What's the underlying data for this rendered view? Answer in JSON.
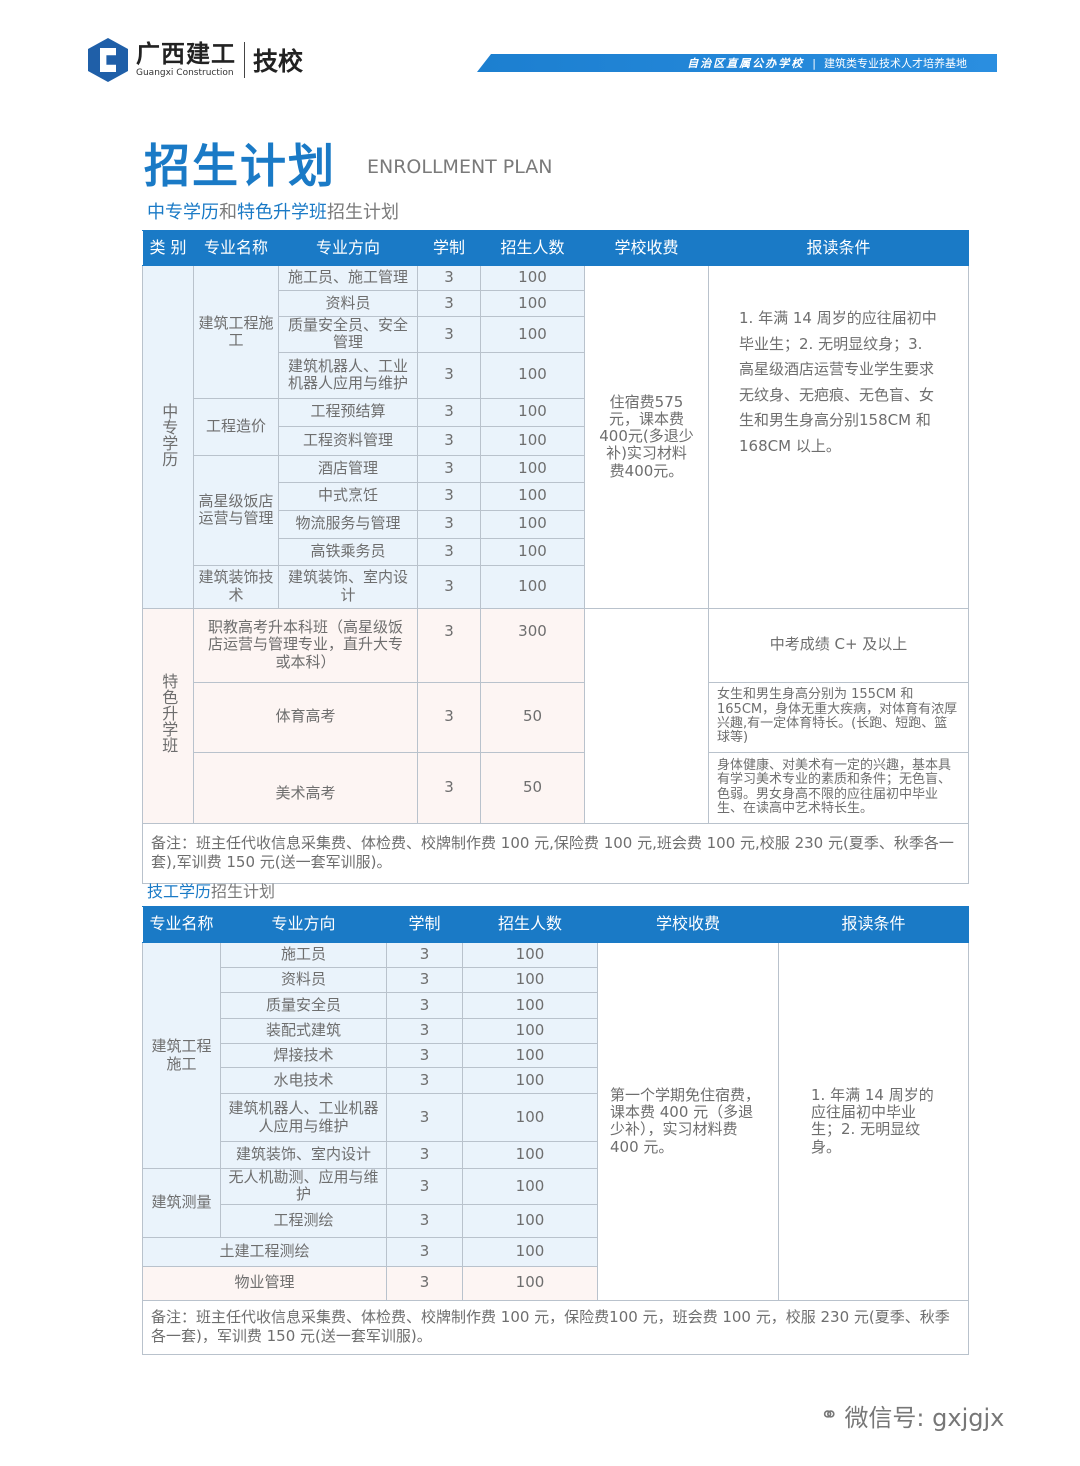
{
  "header": {
    "logo_cn": "广西建工",
    "logo_en": "Guangxi Construction",
    "logo_school": "技校",
    "banner_left": "自治区直属公办学校",
    "banner_sep": "|",
    "banner_right": "建筑类专业技术人才培养基地"
  },
  "title": {
    "cn": "招生计划",
    "en": "ENROLLMENT PLAN"
  },
  "section1": {
    "title_parts": [
      "中专学历",
      "和",
      "特色升学班",
      "招生计划"
    ]
  },
  "t1": {
    "headers": [
      "类 别",
      "专业名称",
      "专业方向",
      "学制",
      "招生人数",
      "学校收费",
      "报读条件"
    ],
    "cat1": "中专学历",
    "cat2": "特色升学班",
    "majors": [
      "建筑工程施工",
      "工程造价",
      "高星级饭店运营与管理",
      "建筑装饰技术"
    ],
    "rows": [
      {
        "dir": "施工员、施工管理",
        "years": "3",
        "count": "100"
      },
      {
        "dir": "资料员",
        "years": "3",
        "count": "100"
      },
      {
        "dir": "质量安全员、安全管理",
        "years": "3",
        "count": "100"
      },
      {
        "dir": "建筑机器人、工业机器人应用与维护",
        "years": "3",
        "count": "100"
      },
      {
        "dir": "工程预结算",
        "years": "3",
        "count": "100"
      },
      {
        "dir": "工程资料管理",
        "years": "3",
        "count": "100"
      },
      {
        "dir": "酒店管理",
        "years": "3",
        "count": "100"
      },
      {
        "dir": "中式烹饪",
        "years": "3",
        "count": "100"
      },
      {
        "dir": "物流服务与管理",
        "years": "3",
        "count": "100"
      },
      {
        "dir": "高铁乘务员",
        "years": "3",
        "count": "100"
      },
      {
        "dir": "建筑装饰、室内设计",
        "years": "3",
        "count": "100"
      },
      {
        "dir": "职教高考升本科班（高星级饭店运营与管理专业，直升大专或本科）",
        "years": "3",
        "count": "300",
        "cond": "中考成绩 C+ 及以上"
      },
      {
        "dir": "体育高考",
        "years": "3",
        "count": "50",
        "cond": "女生和男生身高分别为 155CM 和 165CM，身体无重大疾病，对体育有浓厚兴趣,有一定体育特长。(长跑、短跑、篮球等)"
      },
      {
        "dir": "美术高考",
        "years": "3",
        "count": "50",
        "cond": "身体健康、对美术有一定的兴趣，基本具有学习美术专业的素质和条件；无色盲、色弱。男女身高不限的应往届初中毕业生、在读高中艺术特长生。"
      }
    ],
    "fee": "住宿费575元，课本费400元(多退少补)实习材料费400元。",
    "cond_main": "1. 年满 14 周岁的应往届初中毕业生；2. 无明显纹身；3. 高星级酒店运营专业学生要求无纹身、无疤痕、无色盲、女生和男生身高分别158CM 和 168CM 以上。",
    "remark": "备注：班主任代收信息采集费、体检费、校牌制作费 100 元,保险费 100 元,班会费 100 元,校服 230 元(夏季、秋季各一套),军训费 150 元(送一套军训服)。"
  },
  "section2": {
    "title_parts": [
      "技工学历",
      "招生计划"
    ]
  },
  "t2": {
    "headers": [
      "专业名称",
      "专业方向",
      "学制",
      "招生人数",
      "学校收费",
      "报读条件"
    ],
    "majors": [
      "建筑工程施工",
      "建筑测量",
      "土建工程测绘",
      "物业管理"
    ],
    "rows": [
      {
        "dir": "施工员",
        "years": "3",
        "count": "100"
      },
      {
        "dir": "资料员",
        "years": "3",
        "count": "100"
      },
      {
        "dir": "质量安全员",
        "years": "3",
        "count": "100"
      },
      {
        "dir": "装配式建筑",
        "years": "3",
        "count": "100"
      },
      {
        "dir": "焊接技术",
        "years": "3",
        "count": "100"
      },
      {
        "dir": "水电技术",
        "years": "3",
        "count": "100"
      },
      {
        "dir": "建筑机器人、工业机器人应用与维护",
        "years": "3",
        "count": "100"
      },
      {
        "dir": "建筑装饰、室内设计",
        "years": "3",
        "count": "100"
      },
      {
        "dir": "无人机勘测、应用与维护",
        "years": "3",
        "count": "100"
      },
      {
        "dir": "工程测绘",
        "years": "3",
        "count": "100"
      },
      {
        "years": "3",
        "count": "100"
      },
      {
        "years": "3",
        "count": "100"
      }
    ],
    "fee": "第一个学期免住宿费，课本费 400 元（多退少补），实习材料费 400 元。",
    "cond": "1. 年满 14 周岁的应往届初中毕业生；2. 无明显纹身。",
    "remark": "备注：班主任代收信息采集费、体检费、校牌制作费 100 元，保险费100 元，班会费 100 元，校服 230 元(夏季、秋季各一套)，军训费 150 元(送一套军训服)。"
  },
  "watermark": {
    "icon": "wechat-icon",
    "text": "微信号: gxjgjx"
  },
  "colors": {
    "brand": "#1a7ac6",
    "row_blue": "#eaf3fb",
    "row_pink": "#fdf5f3"
  }
}
